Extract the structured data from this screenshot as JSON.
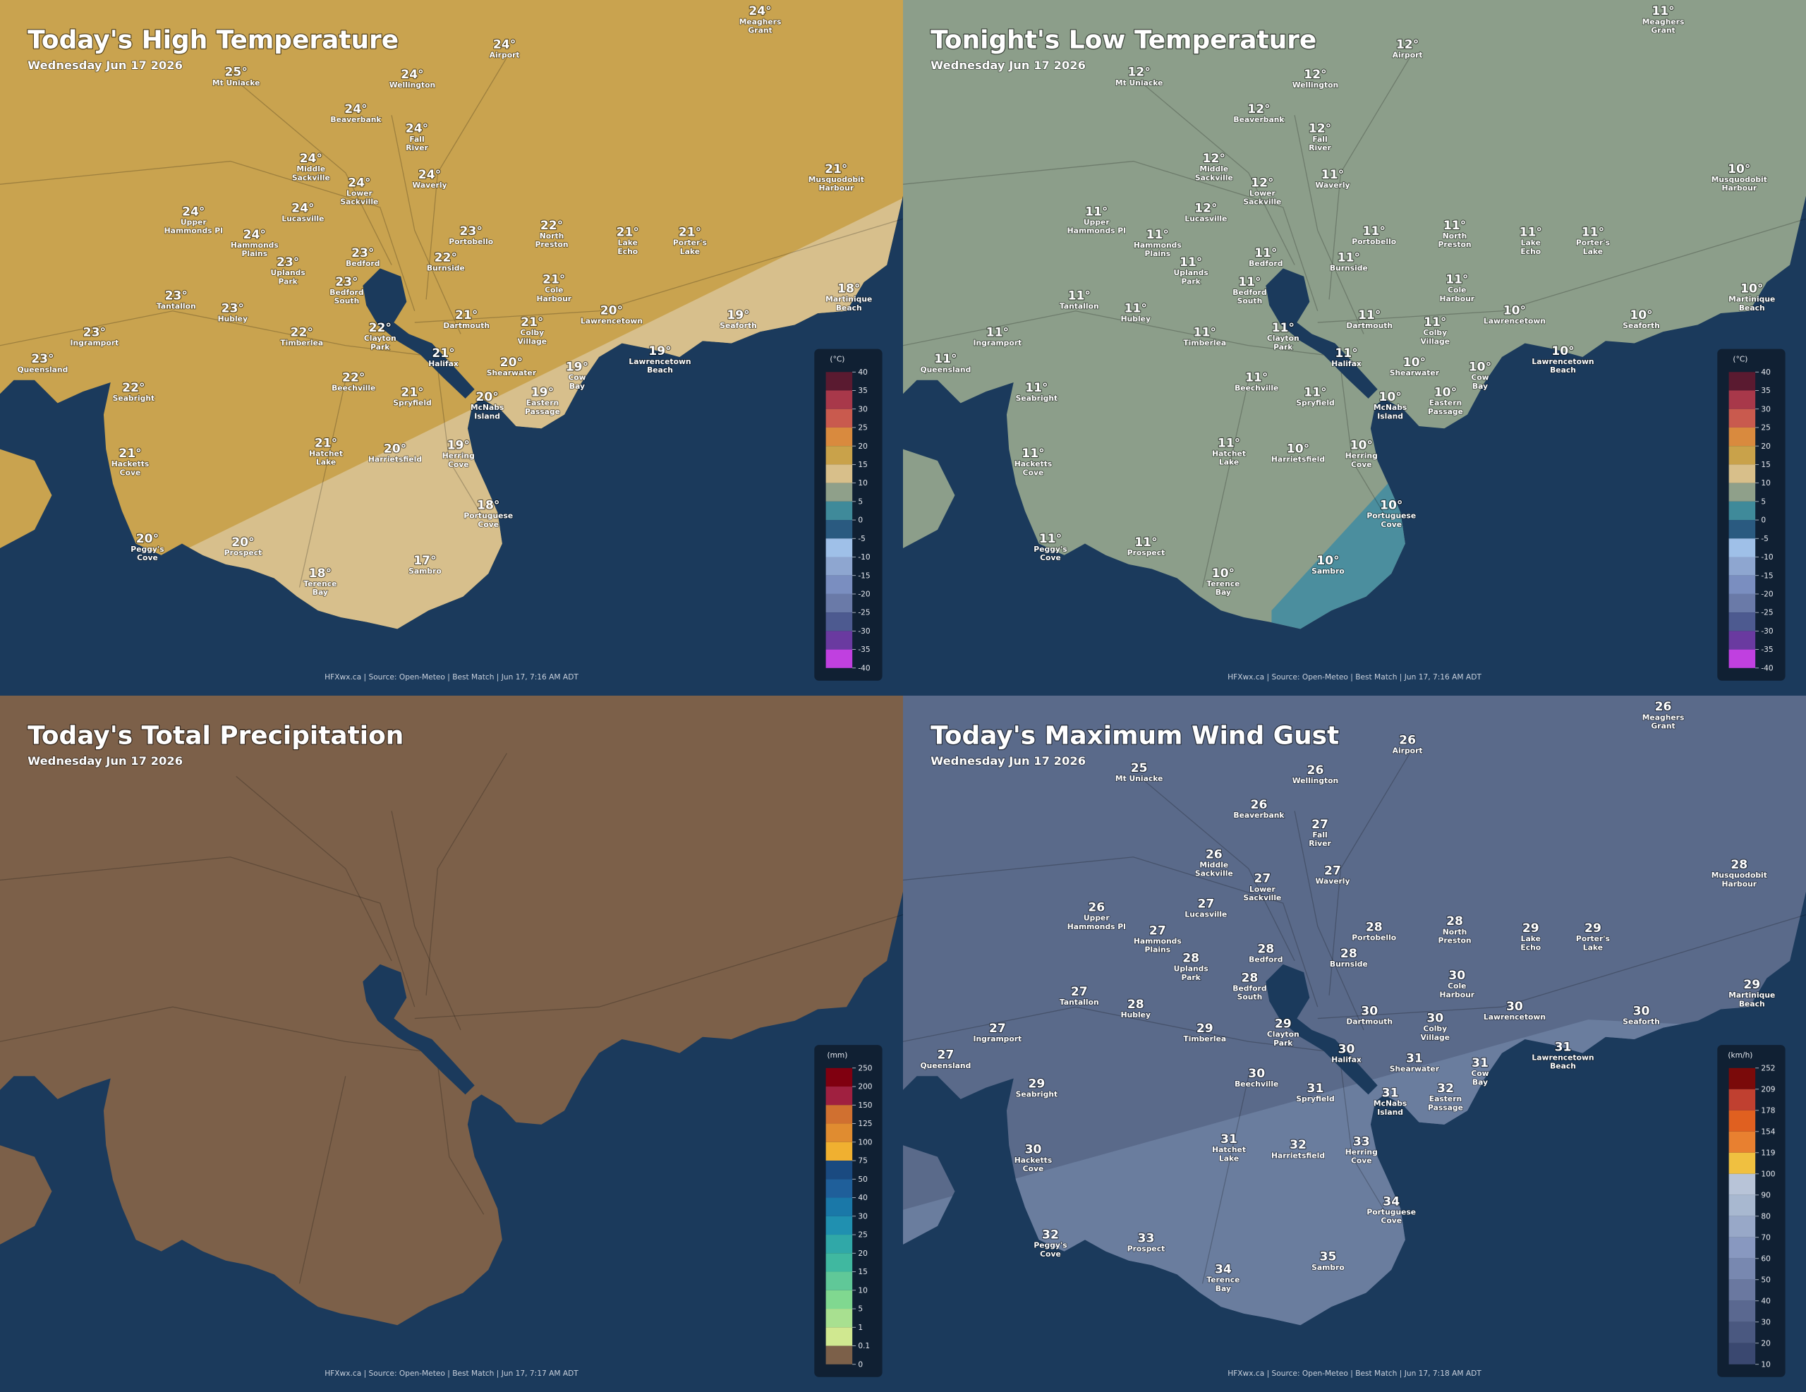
{
  "places": [
    [
      "Meaghers",
      "Grant"
    ],
    [
      "Airport"
    ],
    [
      "Mt Uniacke"
    ],
    [
      "Wellington"
    ],
    [
      "Beaverbank"
    ],
    [
      "Fall",
      "River"
    ],
    [
      "Middle",
      "Sackville"
    ],
    [
      "Waverly"
    ],
    [
      "Lower",
      "Sackville"
    ],
    [
      "Musquodobit",
      "Harbour"
    ],
    [
      "Lucasville"
    ],
    [
      "Upper",
      "Hammonds Pl"
    ],
    [
      "Portobello"
    ],
    [
      "North",
      "Preston"
    ],
    [
      "Lake",
      "Echo"
    ],
    [
      "Porter's",
      "Lake"
    ],
    [
      "Hammonds",
      "Plains"
    ],
    [
      "Bedford"
    ],
    [
      "Burnside"
    ],
    [
      "Uplands",
      "Park"
    ],
    [
      "Bedford",
      "South"
    ],
    [
      "Cole",
      "Harbour"
    ],
    [
      "Martinique",
      "Beach"
    ],
    [
      "Tantallon"
    ],
    [
      "Hubley"
    ],
    [
      "Lawrencetown"
    ],
    [
      "Dartmouth"
    ],
    [
      "Seaforth"
    ],
    [
      "Ingramport"
    ],
    [
      "Timberlea"
    ],
    [
      "Colby",
      "Village"
    ],
    [
      "Clayton",
      "Park"
    ],
    [
      "Halifax"
    ],
    [
      "Lawrencetown",
      "Beach"
    ],
    [
      "Queensland"
    ],
    [
      "Shearwater"
    ],
    [
      "Cow",
      "Bay"
    ],
    [
      "Beechville"
    ],
    [
      "Seabright"
    ],
    [
      "Spryfield"
    ],
    [
      "McNabs",
      "Island"
    ],
    [
      "Eastern",
      "Passage"
    ],
    [
      "Hatchet",
      "Lake"
    ],
    [
      "Harrietsfield"
    ],
    [
      "Herring",
      "Cove"
    ],
    [
      "Hacketts",
      "Cove"
    ],
    [
      "Portuguese",
      "Cove"
    ],
    [
      "Peggy's",
      "Cove"
    ],
    [
      "Prospect"
    ],
    [
      "Sambro"
    ],
    [
      "Terence",
      "Bay"
    ]
  ],
  "panels": [
    {
      "title": "Today's High Temperature",
      "subtitle": "Wednesday Jun 17 2026",
      "land_color": "#c9a34f",
      "zone_color": "#d7bf8c",
      "legend": {
        "unit": "(°C)",
        "ticks": [
          40,
          35,
          30,
          25,
          20,
          15,
          10,
          5,
          0,
          -5,
          -10,
          -15,
          -20,
          -25,
          -30,
          -35,
          -40
        ],
        "colors": [
          "#5a1a30",
          "#a8384a",
          "#c95a4e",
          "#d98a3e",
          "#c9a24a",
          "#d8bf8a",
          "#8fa08a",
          "#3f8a9a",
          "#2a5a80",
          "#9fc0e8",
          "#8ea6d0",
          "#7a8ec0",
          "#6a7aa8",
          "#4d5a90",
          "#6a3aa0",
          "#c040e0"
        ]
      },
      "values": [
        "24°",
        "24°",
        "25°",
        "24°",
        "24°",
        "24°",
        "24°",
        "24°",
        "24°",
        "21°",
        "24°",
        "24°",
        "23°",
        "22°",
        "21°",
        "21°",
        "24°",
        "23°",
        "22°",
        "23°",
        "23°",
        "21°",
        "18°",
        "23°",
        "23°",
        "20°",
        "21°",
        "19°",
        "23°",
        "22°",
        "21°",
        "22°",
        "21°",
        "19°",
        "23°",
        "20°",
        "19°",
        "22°",
        "22°",
        "21°",
        "20°",
        "19°",
        "21°",
        "20°",
        "19°",
        "21°",
        "18°",
        "20°",
        "20°",
        "17°",
        "18°"
      ],
      "source": "HFXwx.ca | Source: Open-Meteo | Best Match | Jun 17, 7:16 AM ADT"
    },
    {
      "title": "Tonight's Low Temperature",
      "subtitle": "Wednesday Jun 17 2026",
      "land_color": "#8c9e8a",
      "zone_color": "#4b8e9e",
      "legend": {
        "unit": "(°C)",
        "ticks": [
          40,
          35,
          30,
          25,
          20,
          15,
          10,
          5,
          0,
          -5,
          -10,
          -15,
          -20,
          -25,
          -30,
          -35,
          -40
        ],
        "colors": [
          "#5a1a30",
          "#a8384a",
          "#c95a4e",
          "#d98a3e",
          "#c9a24a",
          "#d8bf8a",
          "#8fa08a",
          "#3f8a9a",
          "#2a5a80",
          "#9fc0e8",
          "#8ea6d0",
          "#7a8ec0",
          "#6a7aa8",
          "#4d5a90",
          "#6a3aa0",
          "#c040e0"
        ]
      },
      "values": [
        "11°",
        "12°",
        "12°",
        "12°",
        "12°",
        "12°",
        "12°",
        "11°",
        "12°",
        "10°",
        "12°",
        "11°",
        "11°",
        "11°",
        "11°",
        "11°",
        "11°",
        "11°",
        "11°",
        "11°",
        "11°",
        "11°",
        "10°",
        "11°",
        "11°",
        "10°",
        "11°",
        "10°",
        "11°",
        "11°",
        "11°",
        "11°",
        "11°",
        "10°",
        "11°",
        "10°",
        "10°",
        "11°",
        "11°",
        "11°",
        "10°",
        "10°",
        "11°",
        "10°",
        "10°",
        "11°",
        "10°",
        "11°",
        "11°",
        "10°",
        "10°"
      ],
      "source": "HFXwx.ca | Source: Open-Meteo | Best Match | Jun 17, 7:16 AM ADT"
    },
    {
      "title": "Today's Total Precipitation",
      "subtitle": "Wednesday Jun 17 2026",
      "land_color": "#7c6049",
      "legend": {
        "unit": "(mm)",
        "ticks": [
          250,
          200,
          150,
          125,
          100,
          75,
          50,
          40,
          30,
          25,
          20,
          15,
          10,
          5,
          1,
          0.1,
          0
        ],
        "colors": [
          "#800010",
          "#a02040",
          "#d07030",
          "#e08c30",
          "#f0b030",
          "#1a4a80",
          "#1f5f9a",
          "#1a78a8",
          "#2090b0",
          "#30a8a8",
          "#40b8a0",
          "#60c898",
          "#80d890",
          "#a8e090",
          "#d0e890",
          "#7c6049"
        ]
      },
      "source": "HFXwx.ca | Source: Open-Meteo | Best Match | Jun 17, 7:17 AM ADT"
    },
    {
      "title": "Today's Maximum Wind Gust",
      "subtitle": "Wednesday Jun 17 2026",
      "land_color": "#5a6a8a",
      "zone_color": "#6a7d9e",
      "legend": {
        "unit": "(km/h)",
        "ticks": [
          252,
          209,
          178,
          154,
          119,
          100,
          90,
          80,
          70,
          60,
          50,
          40,
          30,
          20,
          10
        ],
        "colors": [
          "#7a0a0a",
          "#c04030",
          "#e06020",
          "#e88030",
          "#f0c040",
          "#b8c4d8",
          "#a8b8d0",
          "#98a8c8",
          "#8898c0",
          "#7888b0",
          "#6a78a0",
          "#5a6890",
          "#4a5880",
          "#3a4870"
        ]
      },
      "values": [
        26,
        26,
        25,
        26,
        26,
        27,
        26,
        27,
        27,
        28,
        27,
        26,
        28,
        28,
        29,
        29,
        27,
        28,
        28,
        28,
        28,
        30,
        29,
        27,
        28,
        30,
        30,
        30,
        27,
        29,
        30,
        29,
        30,
        31,
        27,
        31,
        31,
        30,
        29,
        31,
        31,
        32,
        31,
        32,
        33,
        30,
        34,
        32,
        33,
        35,
        34
      ],
      "source": "HFXwx.ca | Source: Open-Meteo | Best Match | Jun 17, 7:18 AM ADT"
    }
  ]
}
